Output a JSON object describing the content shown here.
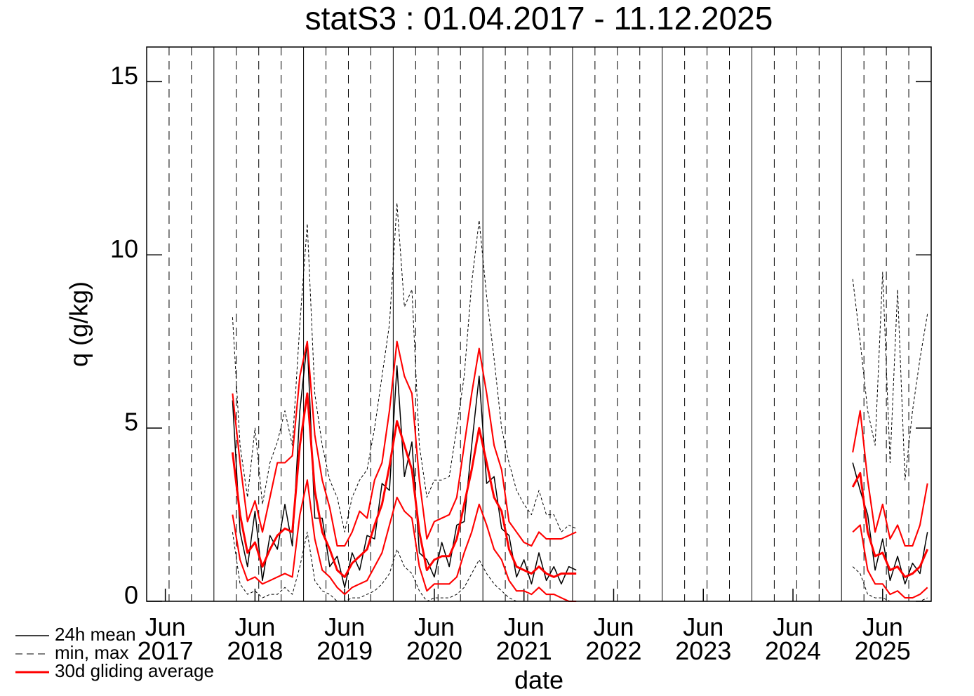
{
  "chart_data": {
    "type": "line",
    "title": "statS3 : 01.04.2017 - 11.12.2025",
    "x_label": "date",
    "y_label": "q (g/kg)",
    "xlim": [
      "2017-04",
      "2025-12"
    ],
    "ylim": [
      0,
      16
    ],
    "yticks": [
      0,
      5,
      10,
      15
    ],
    "xticks": [
      {
        "value": "2017-06",
        "label": "Jun\n2017"
      },
      {
        "value": "2018-06",
        "label": "Jun\n2018"
      },
      {
        "value": "2019-06",
        "label": "Jun\n2019"
      },
      {
        "value": "2020-06",
        "label": "Jun\n2020"
      },
      {
        "value": "2021-06",
        "label": "Jun\n2021"
      },
      {
        "value": "2022-06",
        "label": "Jun\n2022"
      },
      {
        "value": "2023-06",
        "label": "Jun\n2023"
      },
      {
        "value": "2024-06",
        "label": "Jun\n2024"
      },
      {
        "value": "2025-06",
        "label": "Jun\n2025"
      }
    ],
    "xgrid": [
      "2017-04",
      "2017-07",
      "2017-10",
      "2018-01",
      "2018-04",
      "2018-07",
      "2018-10",
      "2019-01",
      "2019-04",
      "2019-07",
      "2019-10",
      "2020-01",
      "2020-04",
      "2020-07",
      "2020-10",
      "2021-01",
      "2021-04",
      "2021-07",
      "2021-10",
      "2022-01",
      "2022-04",
      "2022-07",
      "2022-10",
      "2023-01",
      "2023-04",
      "2023-07",
      "2023-10",
      "2024-01",
      "2024-04",
      "2024-07",
      "2024-10",
      "2025-01",
      "2025-04",
      "2025-07",
      "2025-10"
    ],
    "legend": "bottom-left",
    "x": [
      "2018-03",
      "2018-04",
      "2018-05",
      "2018-06",
      "2018-07",
      "2018-08",
      "2018-09",
      "2018-10",
      "2018-11",
      "2018-12",
      "2019-01",
      "2019-02",
      "2019-03",
      "2019-04",
      "2019-05",
      "2019-06",
      "2019-07",
      "2019-08",
      "2019-09",
      "2019-10",
      "2019-11",
      "2019-12",
      "2020-01",
      "2020-02",
      "2020-03",
      "2020-04",
      "2020-05",
      "2020-06",
      "2020-07",
      "2020-08",
      "2020-09",
      "2020-10",
      "2020-11",
      "2020-12",
      "2021-01",
      "2021-02",
      "2021-03",
      "2021-04",
      "2021-05",
      "2021-06",
      "2021-07",
      "2021-08",
      "2021-09",
      "2021-10",
      "2021-11",
      "2021-12",
      "2022-01",
      "2022-02",
      "2025-02",
      "2025-03",
      "2025-04",
      "2025-05",
      "2025-06",
      "2025-07",
      "2025-08",
      "2025-09",
      "2025-10",
      "2025-11",
      "2025-12"
    ],
    "series": [
      {
        "name": "24h mean",
        "color": "#000000",
        "width": 1.5,
        "values": [
          5.8,
          2.0,
          1.0,
          2.6,
          0.6,
          1.9,
          1.5,
          2.8,
          1.6,
          5.5,
          7.5,
          2.4,
          2.4,
          1.0,
          1.3,
          0.4,
          1.4,
          0.9,
          1.9,
          1.8,
          3.4,
          3.2,
          6.8,
          3.6,
          4.6,
          1.4,
          1.2,
          0.7,
          1.7,
          1.0,
          2.2,
          2.3,
          4.5,
          6.5,
          3.4,
          3.6,
          2.1,
          1.9,
          0.7,
          1.2,
          0.5,
          1.4,
          0.6,
          1.0,
          0.5,
          1.0,
          0.9,
          null,
          4.0,
          3.2,
          2.5,
          0.9,
          1.8,
          0.6,
          1.3,
          0.5,
          1.1,
          0.8,
          2.0
        ]
      },
      {
        "name": "min, max",
        "color": "#000000",
        "width": 1,
        "dash": true,
        "min": [
          2.0,
          0.5,
          0.2,
          0.3,
          0.1,
          0.2,
          0.2,
          0.4,
          0.2,
          1.0,
          2.0,
          0.6,
          0.3,
          0.2,
          0.0,
          0.0,
          0.1,
          0.1,
          0.2,
          0.3,
          0.5,
          0.8,
          1.5,
          1.0,
          0.8,
          0.3,
          0.0,
          0.1,
          0.1,
          0.1,
          0.2,
          0.4,
          0.8,
          1.2,
          0.8,
          0.5,
          0.3,
          0.1,
          0.0,
          0.0,
          0.0,
          0.0,
          0.0,
          0.0,
          0.0,
          0.0,
          0.0,
          null,
          1.0,
          0.8,
          0.2,
          0.1,
          0.1,
          0.0,
          0.0,
          0.0,
          0.0,
          0.0,
          0.1
        ],
        "max": [
          8.2,
          4.5,
          3.0,
          5.0,
          2.8,
          4.0,
          4.6,
          5.5,
          4.5,
          8.0,
          10.9,
          6.0,
          4.5,
          3.5,
          3.0,
          2.0,
          3.0,
          3.5,
          3.8,
          5.0,
          6.5,
          8.0,
          11.5,
          8.5,
          9.0,
          4.5,
          3.0,
          3.5,
          3.5,
          3.6,
          5.0,
          6.5,
          9.2,
          11.0,
          8.8,
          7.0,
          5.0,
          4.0,
          3.2,
          2.8,
          2.5,
          3.2,
          2.5,
          2.5,
          2.0,
          2.2,
          2.1,
          null,
          9.3,
          7.5,
          5.5,
          4.5,
          9.5,
          4.0,
          9.0,
          3.5,
          5.5,
          7.0,
          8.3
        ]
      },
      {
        "name": "30d gliding average",
        "color": "#ff0000",
        "width": 3,
        "values": [
          4.3,
          2.5,
          1.4,
          1.7,
          1.0,
          1.5,
          1.9,
          2.1,
          2.0,
          4.5,
          6.0,
          3.2,
          2.0,
          1.5,
          0.9,
          0.7,
          1.1,
          1.3,
          1.5,
          2.2,
          2.8,
          3.9,
          5.2,
          4.5,
          3.8,
          2.0,
          0.9,
          1.2,
          1.3,
          1.3,
          1.8,
          2.8,
          3.8,
          5.0,
          4.0,
          3.0,
          2.6,
          1.5,
          1.0,
          0.9,
          0.8,
          1.0,
          0.8,
          0.7,
          0.8,
          0.8,
          0.8,
          null,
          3.3,
          3.7,
          2.0,
          1.3,
          1.4,
          0.9,
          1.0,
          0.7,
          0.8,
          1.0,
          1.5
        ],
        "min": [
          2.5,
          1.2,
          0.6,
          0.7,
          0.5,
          0.6,
          0.7,
          0.8,
          0.7,
          2.5,
          3.5,
          1.8,
          0.9,
          0.7,
          0.4,
          0.2,
          0.4,
          0.5,
          0.6,
          1.0,
          1.4,
          2.2,
          3.0,
          2.6,
          2.4,
          1.0,
          0.3,
          0.5,
          0.5,
          0.5,
          0.7,
          1.4,
          2.0,
          2.8,
          2.2,
          1.5,
          1.2,
          0.6,
          0.3,
          0.3,
          0.2,
          0.4,
          0.2,
          0.2,
          0.1,
          0.0,
          0.0,
          null,
          2.0,
          2.2,
          0.9,
          0.5,
          0.5,
          0.2,
          0.3,
          0.1,
          0.1,
          0.2,
          0.4
        ],
        "max": [
          6.0,
          4.0,
          2.3,
          2.9,
          2.0,
          3.0,
          4.0,
          4.0,
          4.2,
          6.5,
          7.5,
          4.8,
          3.5,
          2.7,
          1.6,
          1.6,
          2.0,
          2.6,
          2.4,
          3.5,
          4.0,
          5.5,
          7.5,
          6.5,
          6.0,
          3.5,
          1.8,
          2.3,
          2.4,
          2.5,
          3.0,
          4.5,
          6.0,
          7.3,
          6.0,
          4.5,
          3.8,
          2.3,
          2.0,
          1.7,
          1.6,
          2.0,
          1.8,
          1.8,
          1.8,
          1.9,
          2.0,
          null,
          4.3,
          5.5,
          3.5,
          2.0,
          2.8,
          1.8,
          2.2,
          1.6,
          1.6,
          2.2,
          3.4
        ]
      }
    ]
  }
}
